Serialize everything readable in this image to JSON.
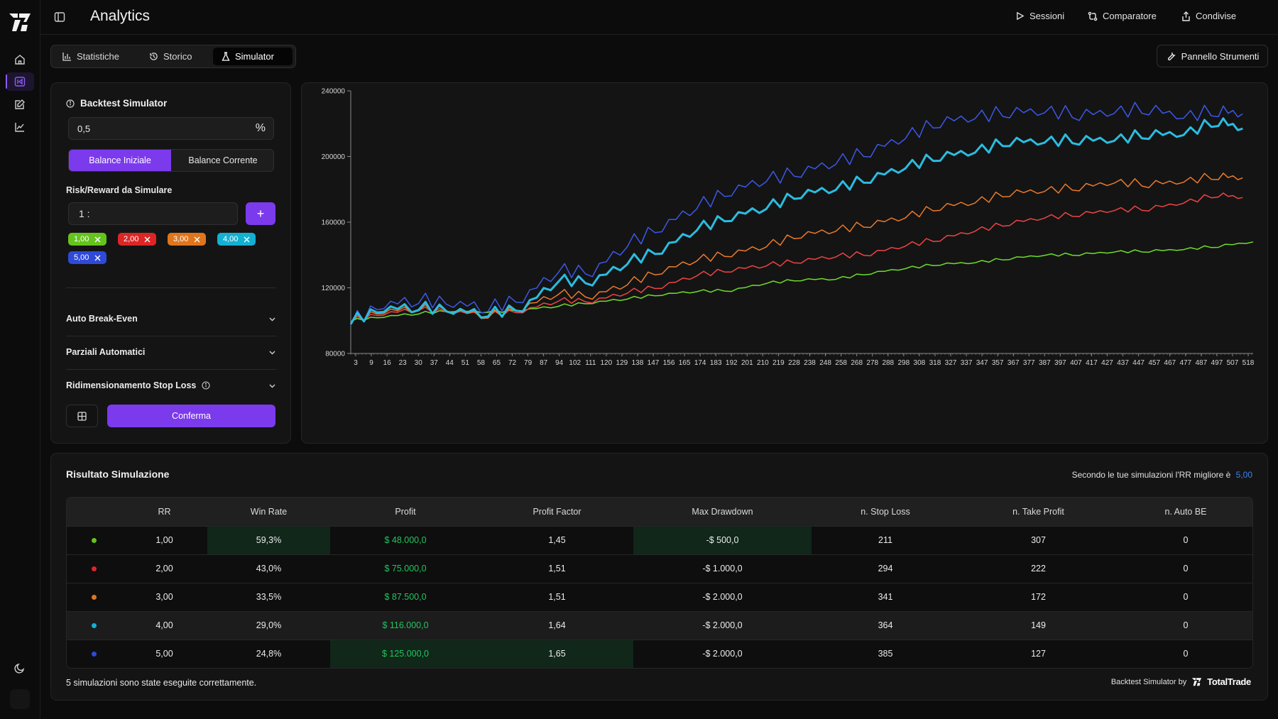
{
  "app": {
    "title": "Analytics"
  },
  "topnav": [
    {
      "label": "Sessioni",
      "icon": "play-icon"
    },
    {
      "label": "Comparatore",
      "icon": "compare-icon"
    },
    {
      "label": "Condivise",
      "icon": "share-icon"
    }
  ],
  "tabs": [
    {
      "label": "Statistiche",
      "icon": "bar-chart-icon"
    },
    {
      "label": "Storico",
      "icon": "history-icon"
    },
    {
      "label": "Simulator",
      "icon": "flask-icon",
      "active": true
    }
  ],
  "tools_button": {
    "label": "Pannello Strumenti",
    "icon": "wrench-icon"
  },
  "simulator": {
    "title": "Backtest Simulator",
    "risk_value": "0,5",
    "risk_unit": "%",
    "balance_options": [
      "Balance Iniziale",
      "Balance Corrente"
    ],
    "balance_selected": "Balance Iniziale",
    "rr_label": "Risk/Reward da Simulare",
    "rr_prefix": "1 :",
    "add_label": "+",
    "chips": [
      {
        "label": "1,00",
        "color": "#65c31d"
      },
      {
        "label": "2,00",
        "color": "#dc2626"
      },
      {
        "label": "3,00",
        "color": "#e0751c"
      },
      {
        "label": "4,00",
        "color": "#13b0d4"
      },
      {
        "label": "5,00",
        "color": "#2f49d8"
      }
    ],
    "accordions": [
      "Auto Break-Even",
      "Parziali Automatici",
      "Ridimensionamento Stop Loss"
    ],
    "confirm_label": "Conferma"
  },
  "chart_data": {
    "type": "line",
    "title": "",
    "xlabel": "",
    "ylabel": "",
    "ylim": [
      80000,
      240000
    ],
    "yticks": [
      80000,
      120000,
      160000,
      200000,
      240000
    ],
    "xtick_labels": [
      "3",
      "9",
      "16",
      "23",
      "30",
      "37",
      "44",
      "51",
      "58",
      "65",
      "72",
      "79",
      "87",
      "94",
      "102",
      "111",
      "120",
      "129",
      "138",
      "147",
      "156",
      "165",
      "174",
      "183",
      "192",
      "201",
      "210",
      "219",
      "228",
      "238",
      "248",
      "258",
      "268",
      "278",
      "288",
      "298",
      "308",
      "318",
      "327",
      "337",
      "347",
      "357",
      "367",
      "377",
      "387",
      "397",
      "407",
      "417",
      "427",
      "437",
      "447",
      "457",
      "467",
      "477",
      "487",
      "497",
      "507",
      "518"
    ],
    "xlim": [
      1,
      520
    ],
    "grid": false,
    "series": [
      {
        "rr": "1,00",
        "color": "#6fdc2b",
        "x": [
          1,
          20,
          40,
          60,
          80,
          100,
          120,
          140,
          160,
          180,
          200,
          220,
          240,
          260,
          280,
          300,
          320,
          340,
          360,
          380,
          400,
          420,
          440,
          460,
          480,
          500,
          520
        ],
        "values": [
          100000,
          102500,
          104500,
          106000,
          105500,
          106500,
          109000,
          111000,
          113500,
          116000,
          118000,
          118500,
          123000,
          125000,
          125500,
          129000,
          132000,
          134500,
          135500,
          138000,
          140000,
          140500,
          142000,
          142500,
          143500,
          145500,
          148000
        ]
      },
      {
        "rr": "2,00",
        "color": "#ef4444",
        "x": [
          1,
          20,
          40,
          60,
          80,
          100,
          120,
          140,
          160,
          180,
          200,
          220,
          240,
          260,
          280,
          300,
          320,
          340,
          360,
          380,
          400,
          420,
          440,
          460,
          480,
          500,
          514
        ],
        "values": [
          100000,
          104500,
          107000,
          105500,
          103500,
          106000,
          112500,
          112000,
          117500,
          121000,
          128000,
          131000,
          134000,
          136500,
          139500,
          141000,
          146000,
          150000,
          155000,
          159500,
          163000,
          165000,
          167500,
          168500,
          172000,
          177000,
          175000
        ]
      },
      {
        "rr": "3,00",
        "color": "#ea7a2c",
        "x": [
          1,
          20,
          40,
          60,
          80,
          100,
          120,
          140,
          160,
          180,
          200,
          220,
          240,
          260,
          280,
          300,
          320,
          340,
          360,
          380,
          400,
          420,
          440,
          460,
          480,
          500,
          514
        ],
        "values": [
          100000,
          106000,
          107500,
          106500,
          103000,
          108000,
          117000,
          115000,
          123000,
          130500,
          137500,
          141000,
          146000,
          152500,
          155500,
          159000,
          163500,
          169500,
          172500,
          178000,
          179500,
          181500,
          184500,
          183500,
          185000,
          188500,
          187000
        ]
      },
      {
        "rr": "4,00",
        "color": "#2bbce0",
        "x": [
          1,
          20,
          40,
          60,
          80,
          100,
          120,
          140,
          160,
          180,
          200,
          220,
          240,
          260,
          280,
          300,
          320,
          340,
          360,
          380,
          400,
          420,
          440,
          460,
          480,
          500,
          514
        ],
        "values": [
          100000,
          107500,
          108500,
          106500,
          104500,
          108000,
          125000,
          124000,
          136000,
          143500,
          156500,
          163500,
          169500,
          177500,
          181000,
          187000,
          194000,
          200500,
          203500,
          209500,
          209500,
          210500,
          210500,
          214000,
          214000,
          222000,
          217000
        ]
      },
      {
        "rr": "5,00",
        "color": "#3b59e6",
        "x": [
          1,
          20,
          40,
          60,
          80,
          100,
          120,
          140,
          160,
          180,
          200,
          220,
          240,
          260,
          280,
          300,
          320,
          340,
          360,
          380,
          400,
          420,
          440,
          460,
          480,
          500,
          514
        ],
        "values": [
          100000,
          110000,
          113000,
          111000,
          108000,
          114000,
          131000,
          130000,
          147000,
          157500,
          170000,
          179500,
          186500,
          191000,
          197000,
          203500,
          212500,
          221500,
          224500,
          227500,
          228000,
          226000,
          227500,
          229500,
          224500,
          228500,
          226000
        ]
      }
    ]
  },
  "results": {
    "title": "Risultato Simulazione",
    "best_text": "Secondo le tue simulazioni l'RR migliore è",
    "best_value": "5,00",
    "columns": [
      "",
      "RR",
      "Win Rate",
      "Profit",
      "Profit Factor",
      "Max Drawdown",
      "n. Stop Loss",
      "n. Take Profit",
      "n. Auto BE"
    ],
    "rows": [
      {
        "color": "#65c31d",
        "rr": "1,00",
        "win_rate": "59,3%",
        "profit": "$ 48.000,0",
        "profit_factor": "1,45",
        "max_drawdown": "-$ 500,0",
        "stop_loss": "211",
        "take_profit": "307",
        "auto_be": "0"
      },
      {
        "color": "#dc2626",
        "rr": "2,00",
        "win_rate": "43,0%",
        "profit": "$ 75.000,0",
        "profit_factor": "1,51",
        "max_drawdown": "-$ 1.000,0",
        "stop_loss": "294",
        "take_profit": "222",
        "auto_be": "0"
      },
      {
        "color": "#e0751c",
        "rr": "3,00",
        "win_rate": "33,5%",
        "profit": "$ 87.500,0",
        "profit_factor": "1,51",
        "max_drawdown": "-$ 2.000,0",
        "stop_loss": "341",
        "take_profit": "172",
        "auto_be": "0"
      },
      {
        "color": "#13b0d4",
        "rr": "4,00",
        "win_rate": "29,0%",
        "profit": "$ 116.000,0",
        "profit_factor": "1,64",
        "max_drawdown": "-$ 2.000,0",
        "stop_loss": "364",
        "take_profit": "149",
        "auto_be": "0"
      },
      {
        "color": "#2f49d8",
        "rr": "5,00",
        "win_rate": "24,8%",
        "profit": "$ 125.000,0",
        "profit_factor": "1,65",
        "max_drawdown": "-$ 2.000,0",
        "stop_loss": "385",
        "take_profit": "127",
        "auto_be": "0"
      }
    ],
    "footer": "5 simulazioni sono state eseguite correttamente.",
    "brand_prefix": "Backtest Simulator by",
    "brand_name": "TotalTrade"
  }
}
